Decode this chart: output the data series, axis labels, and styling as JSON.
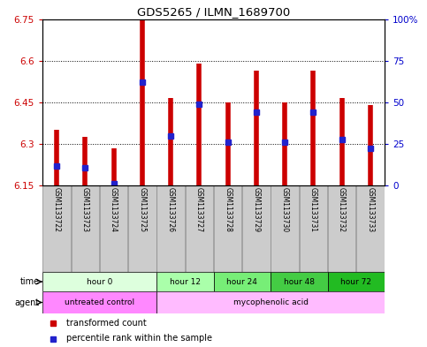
{
  "title": "GDS5265 / ILMN_1689700",
  "samples": [
    "GSM1133722",
    "GSM1133723",
    "GSM1133724",
    "GSM1133725",
    "GSM1133726",
    "GSM1133727",
    "GSM1133728",
    "GSM1133729",
    "GSM1133730",
    "GSM1133731",
    "GSM1133732",
    "GSM1133733"
  ],
  "bar_tops": [
    6.35,
    6.325,
    6.285,
    6.75,
    6.465,
    6.59,
    6.45,
    6.565,
    6.45,
    6.565,
    6.465,
    6.44
  ],
  "blue_values": [
    6.22,
    6.215,
    6.155,
    6.525,
    6.33,
    6.445,
    6.305,
    6.415,
    6.305,
    6.415,
    6.315,
    6.285
  ],
  "ymin": 6.15,
  "ymax": 6.75,
  "yticks_left": [
    6.15,
    6.3,
    6.45,
    6.6,
    6.75
  ],
  "yticks_right": [
    0,
    25,
    50,
    75,
    100
  ],
  "bar_color": "#cc0000",
  "blue_color": "#2222cc",
  "time_groups": [
    {
      "label": "hour 0",
      "start": 0,
      "end": 4,
      "color": "#ddffdd"
    },
    {
      "label": "hour 12",
      "start": 4,
      "end": 6,
      "color": "#aaffaa"
    },
    {
      "label": "hour 24",
      "start": 6,
      "end": 8,
      "color": "#77ee77"
    },
    {
      "label": "hour 48",
      "start": 8,
      "end": 10,
      "color": "#44cc44"
    },
    {
      "label": "hour 72",
      "start": 10,
      "end": 12,
      "color": "#22bb22"
    }
  ],
  "agent_groups": [
    {
      "label": "untreated control",
      "start": 0,
      "end": 4,
      "color": "#ff88ff"
    },
    {
      "label": "mycophenolic acid",
      "start": 4,
      "end": 12,
      "color": "#ffbbff"
    }
  ],
  "legend_red": "transformed count",
  "legend_blue": "percentile rank within the sample",
  "axis_color_left": "#cc0000",
  "axis_color_right": "#0000cc"
}
